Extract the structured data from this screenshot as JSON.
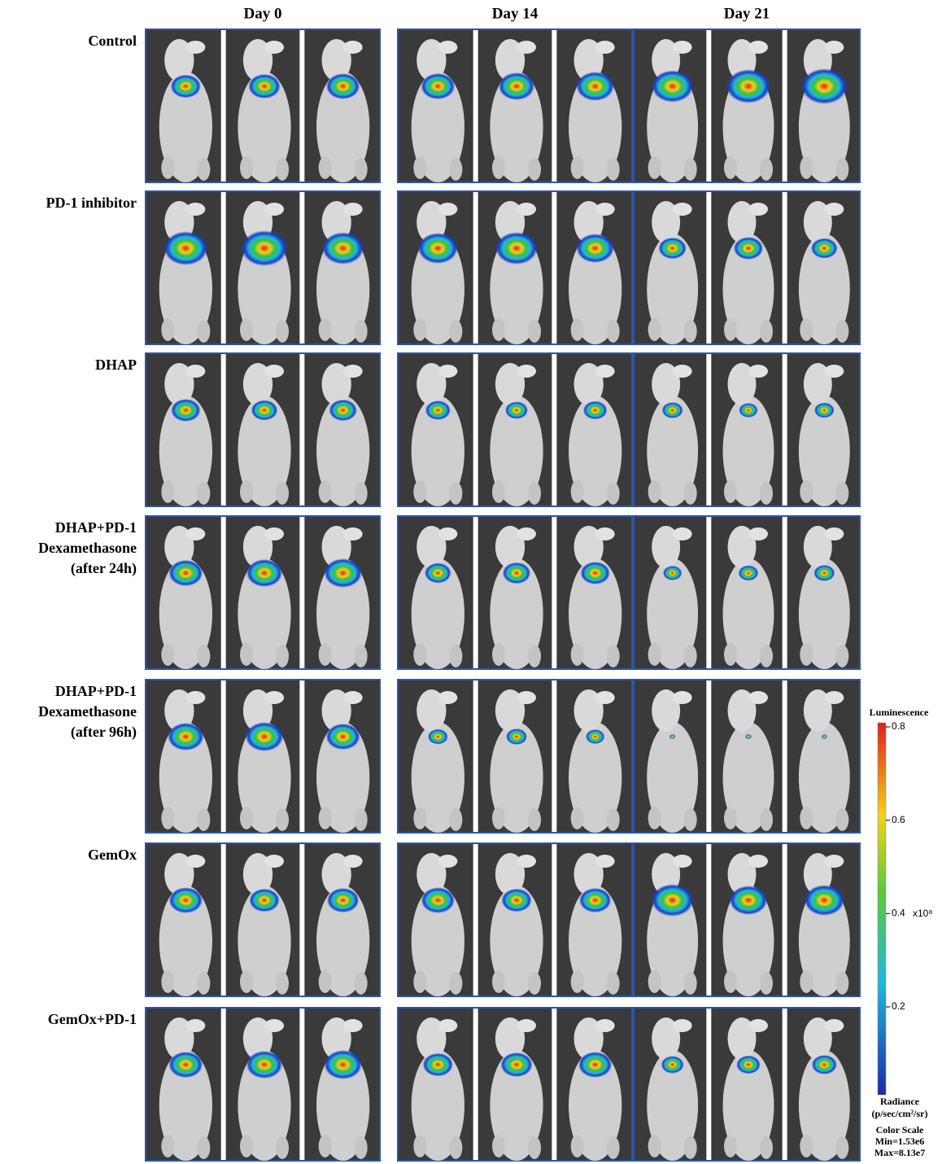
{
  "columns": [
    "Day 0",
    "Day 14",
    "Day 21"
  ],
  "rows": [
    {
      "label": [
        "Control"
      ]
    },
    {
      "label": [
        "PD-1 inhibitor"
      ]
    },
    {
      "label": [
        "DHAP"
      ]
    },
    {
      "label": [
        "DHAP+PD-1",
        "Dexamethasone",
        "(after 24h)"
      ]
    },
    {
      "label": [
        "DHAP+PD-1",
        "Dexamethasone",
        "(after 96h)"
      ]
    },
    {
      "label": [
        "GemOx"
      ]
    },
    {
      "label": [
        "GemOx+PD-1"
      ]
    }
  ],
  "color_scale": {
    "title": "Luminescence",
    "ticks": [
      0.2,
      0.4,
      0.6,
      0.8
    ],
    "multiplier": "x10⁸",
    "unit": [
      "Radiance",
      "(p/sec/cm²/sr)"
    ],
    "caption": [
      "Color Scale",
      "Min=1.53e6",
      "Max=8.13e7"
    ]
  }
}
